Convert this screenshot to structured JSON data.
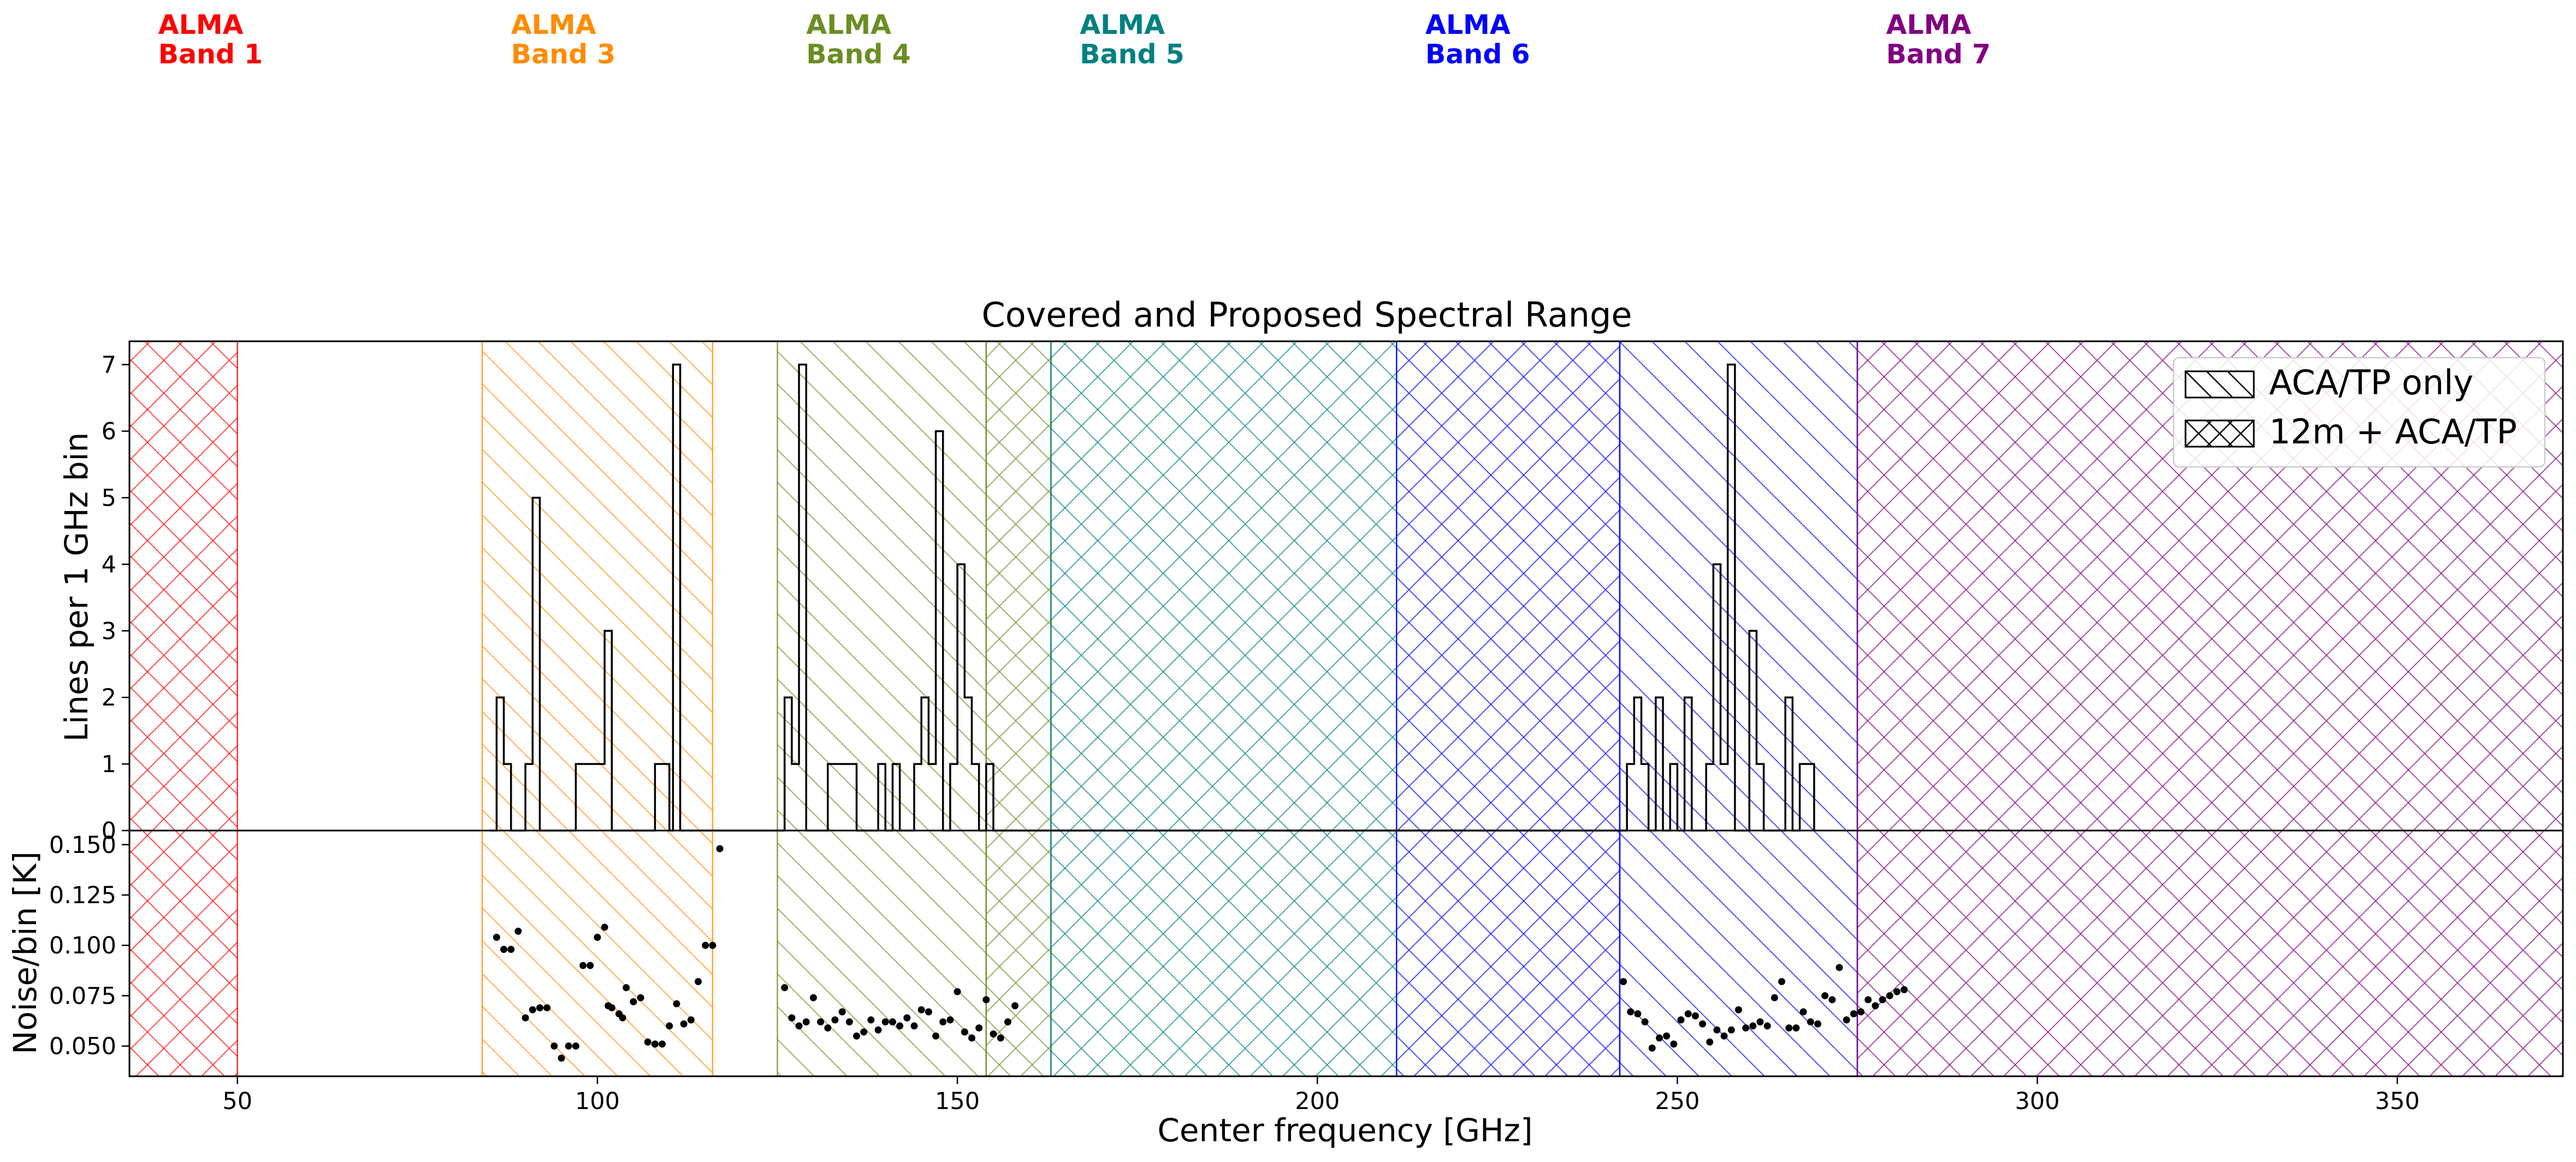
{
  "band_labels": [
    {
      "line1": "ALMA",
      "line2": "Band 1",
      "color": "#ff0000",
      "x": 39
    },
    {
      "line1": "ALMA",
      "line2": "Band 3",
      "color": "#ff8c00",
      "x": 88
    },
    {
      "line1": "ALMA",
      "line2": "Band 4",
      "color": "#6b8e23",
      "x": 129
    },
    {
      "line1": "ALMA",
      "line2": "Band 5",
      "color": "#008080",
      "x": 167
    },
    {
      "line1": "ALMA",
      "line2": "Band 6",
      "color": "#0000ff",
      "x": 215
    },
    {
      "line1": "ALMA",
      "line2": "Band 7",
      "color": "#800080",
      "x": 279
    }
  ],
  "chart_data": [
    {
      "type": "bar",
      "title": "Covered and Proposed Spectral Range",
      "xlabel": "",
      "ylabel": "Lines per 1 GHz bin",
      "xlim": [
        35,
        373
      ],
      "ylim": [
        0,
        7.35
      ],
      "yticks": [
        0,
        1,
        2,
        3,
        4,
        5,
        6,
        7
      ],
      "grid": false,
      "legend": {
        "placement": "top-right",
        "entries": [
          {
            "label": "ACA/TP only",
            "hatch": "single"
          },
          {
            "label": "12m + ACA/TP",
            "hatch": "cross"
          }
        ]
      },
      "regions": [
        {
          "x0": 35,
          "x1": 50,
          "color": "#ff0000",
          "hatch": "cross"
        },
        {
          "x0": 84,
          "x1": 116,
          "color": "#ff8c00",
          "hatch": "single"
        },
        {
          "x0": 125,
          "x1": 154,
          "color": "#6b8e23",
          "hatch": "single"
        },
        {
          "x0": 154,
          "x1": 163,
          "color": "#6b8e23",
          "hatch": "cross"
        },
        {
          "x0": 163,
          "x1": 211,
          "color": "#008080",
          "hatch": "cross"
        },
        {
          "x0": 211,
          "x1": 242,
          "color": "#0000ff",
          "hatch": "cross"
        },
        {
          "x0": 242,
          "x1": 275,
          "color": "#0000ff",
          "hatch": "single"
        },
        {
          "x0": 275,
          "x1": 373,
          "color": "#800080",
          "hatch": "cross"
        }
      ],
      "histogram_steps": [
        [
          85,
          0
        ],
        [
          86,
          2
        ],
        [
          87,
          1
        ],
        [
          88,
          0
        ],
        [
          90,
          1
        ],
        [
          91,
          5
        ],
        [
          92,
          0
        ],
        [
          97,
          1
        ],
        [
          101,
          3
        ],
        [
          102,
          0
        ],
        [
          108,
          1
        ],
        [
          110,
          0
        ],
        [
          110.5,
          7
        ],
        [
          111.5,
          0
        ],
        [
          126,
          2
        ],
        [
          127,
          1
        ],
        [
          128,
          7
        ],
        [
          129,
          0
        ],
        [
          132,
          1
        ],
        [
          136,
          0
        ],
        [
          139,
          1
        ],
        [
          140,
          0
        ],
        [
          141,
          1
        ],
        [
          142,
          0
        ],
        [
          144,
          1
        ],
        [
          145,
          2
        ],
        [
          146,
          1
        ],
        [
          147,
          6
        ],
        [
          148,
          0
        ],
        [
          149,
          1
        ],
        [
          150,
          4
        ],
        [
          151,
          2
        ],
        [
          152,
          1
        ],
        [
          153,
          0
        ],
        [
          154,
          1
        ],
        [
          155,
          0
        ],
        [
          243,
          1
        ],
        [
          244,
          2
        ],
        [
          245,
          1
        ],
        [
          246,
          0
        ],
        [
          247,
          2
        ],
        [
          248,
          0
        ],
        [
          249,
          1
        ],
        [
          250,
          0
        ],
        [
          251,
          2
        ],
        [
          252,
          0
        ],
        [
          254,
          1
        ],
        [
          255,
          4
        ],
        [
          256,
          1
        ],
        [
          257,
          7
        ],
        [
          258,
          0
        ],
        [
          259,
          0
        ],
        [
          260,
          3
        ],
        [
          261,
          1
        ],
        [
          262,
          0
        ],
        [
          265,
          2
        ],
        [
          266,
          0
        ],
        [
          267,
          1
        ],
        [
          269,
          0
        ]
      ]
    },
    {
      "type": "scatter",
      "xlabel": "Center frequency [GHz]",
      "ylabel": "Noise/bin [K]",
      "xlim": [
        35,
        373
      ],
      "ylim": [
        0.035,
        0.157
      ],
      "xticks": [
        50,
        100,
        150,
        200,
        250,
        300,
        350
      ],
      "yticks": [
        0.05,
        0.075,
        0.1,
        0.125,
        0.15
      ],
      "ytick_labels": [
        "0.050",
        "0.075",
        "0.100",
        "0.125",
        "0.150"
      ],
      "points": [
        [
          86,
          0.104
        ],
        [
          87,
          0.098
        ],
        [
          88,
          0.098
        ],
        [
          89,
          0.107
        ],
        [
          90,
          0.064
        ],
        [
          91,
          0.068
        ],
        [
          92,
          0.069
        ],
        [
          93,
          0.069
        ],
        [
          94,
          0.05
        ],
        [
          95,
          0.044
        ],
        [
          96,
          0.05
        ],
        [
          97,
          0.05
        ],
        [
          98,
          0.09
        ],
        [
          99,
          0.09
        ],
        [
          100,
          0.104
        ],
        [
          101,
          0.109
        ],
        [
          101.5,
          0.07
        ],
        [
          102,
          0.069
        ],
        [
          103,
          0.066
        ],
        [
          103.5,
          0.064
        ],
        [
          104,
          0.079
        ],
        [
          105,
          0.072
        ],
        [
          106,
          0.074
        ],
        [
          107,
          0.052
        ],
        [
          108,
          0.051
        ],
        [
          109,
          0.051
        ],
        [
          110,
          0.06
        ],
        [
          111,
          0.071
        ],
        [
          112,
          0.061
        ],
        [
          113,
          0.063
        ],
        [
          114,
          0.082
        ],
        [
          115,
          0.1
        ],
        [
          116,
          0.1
        ],
        [
          117,
          0.148
        ],
        [
          126,
          0.079
        ],
        [
          127,
          0.064
        ],
        [
          128,
          0.06
        ],
        [
          129,
          0.062
        ],
        [
          130,
          0.074
        ],
        [
          131,
          0.062
        ],
        [
          132,
          0.059
        ],
        [
          133,
          0.063
        ],
        [
          134,
          0.067
        ],
        [
          135,
          0.062
        ],
        [
          136,
          0.055
        ],
        [
          137,
          0.057
        ],
        [
          138,
          0.063
        ],
        [
          139,
          0.058
        ],
        [
          140,
          0.062
        ],
        [
          141,
          0.062
        ],
        [
          142,
          0.06
        ],
        [
          143,
          0.064
        ],
        [
          144,
          0.06
        ],
        [
          145,
          0.068
        ],
        [
          146,
          0.067
        ],
        [
          147,
          0.055
        ],
        [
          148,
          0.062
        ],
        [
          149,
          0.063
        ],
        [
          150,
          0.077
        ],
        [
          151,
          0.057
        ],
        [
          152,
          0.054
        ],
        [
          153,
          0.059
        ],
        [
          154,
          0.073
        ],
        [
          155,
          0.056
        ],
        [
          156,
          0.054
        ],
        [
          157,
          0.062
        ],
        [
          158,
          0.07
        ],
        [
          242.5,
          0.082
        ],
        [
          243.5,
          0.067
        ],
        [
          244.5,
          0.066
        ],
        [
          245.5,
          0.062
        ],
        [
          246.5,
          0.049
        ],
        [
          247.5,
          0.054
        ],
        [
          248.5,
          0.055
        ],
        [
          249.5,
          0.051
        ],
        [
          250.5,
          0.063
        ],
        [
          251.5,
          0.066
        ],
        [
          252.5,
          0.065
        ],
        [
          253.5,
          0.061
        ],
        [
          254.5,
          0.052
        ],
        [
          255.5,
          0.058
        ],
        [
          256.5,
          0.055
        ],
        [
          257.5,
          0.058
        ],
        [
          258.5,
          0.068
        ],
        [
          259.5,
          0.059
        ],
        [
          260.5,
          0.06
        ],
        [
          261.5,
          0.062
        ],
        [
          262.5,
          0.06
        ],
        [
          263.5,
          0.074
        ],
        [
          264.5,
          0.082
        ],
        [
          265.5,
          0.059
        ],
        [
          266.5,
          0.059
        ],
        [
          267.5,
          0.067
        ],
        [
          268.5,
          0.062
        ],
        [
          269.5,
          0.061
        ],
        [
          270.5,
          0.075
        ],
        [
          271.5,
          0.073
        ],
        [
          272.5,
          0.089
        ],
        [
          273.5,
          0.063
        ],
        [
          274.5,
          0.066
        ],
        [
          275.5,
          0.067
        ],
        [
          276.5,
          0.073
        ],
        [
          277.5,
          0.07
        ],
        [
          278.5,
          0.073
        ],
        [
          279.5,
          0.075
        ],
        [
          280.5,
          0.077
        ],
        [
          281.5,
          0.078
        ]
      ]
    }
  ]
}
